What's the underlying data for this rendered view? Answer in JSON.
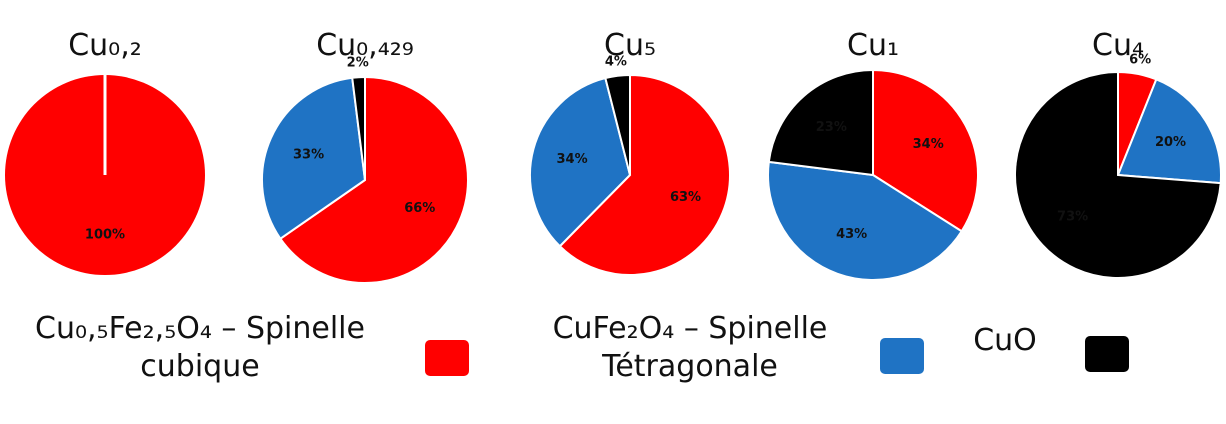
{
  "chart_data": [
    {
      "type": "pie",
      "title": "Cu₀,₂",
      "categories": [
        "Cu₀,₅Fe₂,₅O₄ – Spinelle cubique"
      ],
      "values": [
        100
      ],
      "value_labels": [
        "100%"
      ],
      "colors": [
        "#ff0000"
      ]
    },
    {
      "type": "pie",
      "title": "Cu₀,₄₂₉",
      "categories": [
        "Cu₀,₅Fe₂,₅O₄ – Spinelle cubique",
        "CuFe₂O₄ – Spinelle Tétragonale",
        "CuO"
      ],
      "values": [
        66,
        33,
        2
      ],
      "value_labels": [
        "66%",
        "33%",
        "2%"
      ],
      "colors": [
        "#ff0000",
        "#1f73c4",
        "#000000"
      ]
    },
    {
      "type": "pie",
      "title": "Cu₅",
      "categories": [
        "Cu₀,₅Fe₂,₅O₄ – Spinelle cubique",
        "CuFe₂O₄ – Spinelle Tétragonale",
        "CuO"
      ],
      "values": [
        63,
        34,
        4
      ],
      "value_labels": [
        "63%",
        "34%",
        "4%"
      ],
      "colors": [
        "#ff0000",
        "#1f73c4",
        "#000000"
      ]
    },
    {
      "type": "pie",
      "title": "Cu₁",
      "categories": [
        "Cu₀,₅Fe₂,₅O₄ – Spinelle cubique",
        "CuFe₂O₄ – Spinelle Tétragonale",
        "CuO"
      ],
      "values": [
        34,
        43,
        23
      ],
      "value_labels": [
        "34%",
        "43%",
        "23%"
      ],
      "colors": [
        "#ff0000",
        "#1f73c4",
        "#000000"
      ]
    },
    {
      "type": "pie",
      "title": "Cu₄",
      "categories": [
        "Cu₀,₅Fe₂,₅O₄ – Spinelle cubique",
        "CuFe₂O₄ – Spinelle Tétragonale",
        "CuO"
      ],
      "values": [
        6,
        20,
        73
      ],
      "value_labels": [
        "6%",
        "20%",
        "73%"
      ],
      "colors": [
        "#ff0000",
        "#1f73c4",
        "#000000"
      ]
    }
  ]
}
